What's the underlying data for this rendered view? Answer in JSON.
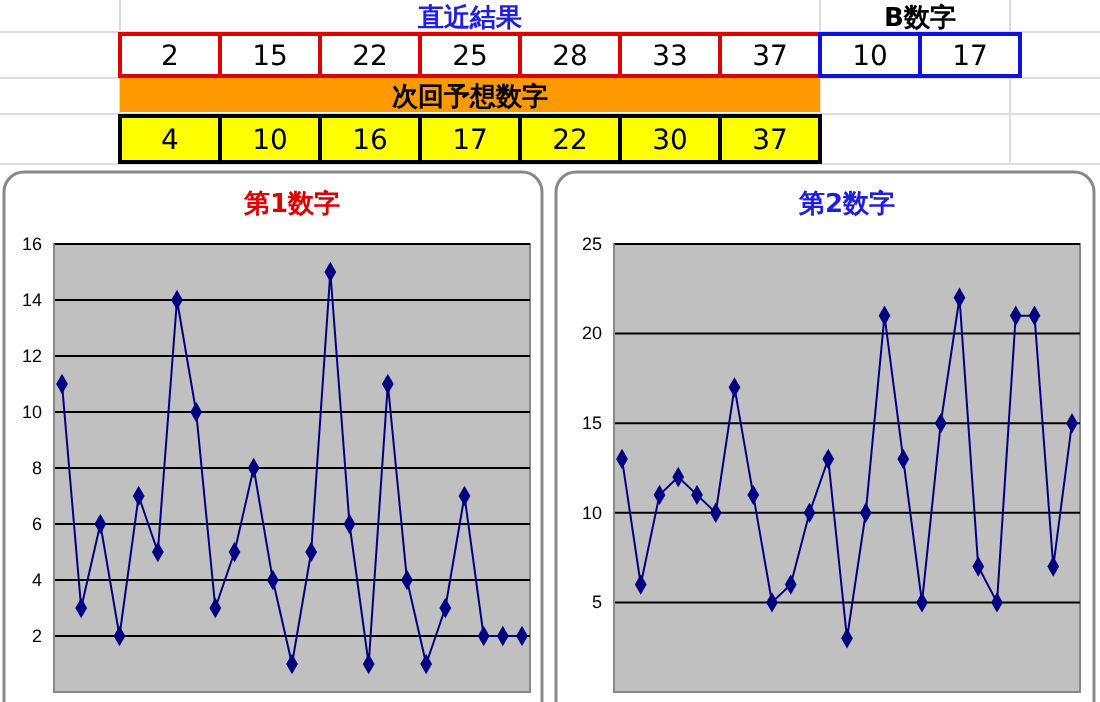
{
  "chart_data": [
    {
      "type": "other",
      "annotations": [
        "直近結果",
        "2",
        "15",
        "22",
        "25",
        "28",
        "33",
        "37",
        "B数字",
        "10",
        "17",
        "次回予想数字",
        "4",
        "10",
        "16",
        "17",
        "22",
        "30",
        "37"
      ]
    },
    {
      "type": "line",
      "title": "第1数字",
      "categories": [
        null,
        null,
        null,
        null,
        null,
        null,
        null,
        null,
        null,
        null,
        null,
        null,
        null,
        null,
        null,
        null,
        null,
        null,
        null,
        null,
        null,
        null,
        null,
        null,
        null
      ],
      "series": [
        {
          "color": "#000080",
          "values": [
            11,
            3,
            6,
            2,
            7,
            5,
            14,
            10,
            3,
            5,
            8,
            4,
            1,
            5,
            15,
            6,
            1,
            11,
            4,
            1,
            3,
            7,
            2,
            2,
            2
          ]
        }
      ],
      "ylim": [
        0,
        16
      ],
      "yticks": [
        2,
        4,
        6,
        8,
        10,
        12,
        14,
        16
      ],
      "grid": "y",
      "marker": "diamond",
      "tick_labels": "y"
    },
    {
      "type": "line",
      "title": "第2数字",
      "categories": [
        null,
        null,
        null,
        null,
        null,
        null,
        null,
        null,
        null,
        null,
        null,
        null,
        null,
        null,
        null,
        null,
        null,
        null,
        null,
        null,
        null,
        null,
        null,
        null,
        null
      ],
      "series": [
        {
          "color": "#000080",
          "values": [
            13,
            6,
            11,
            12,
            11,
            10,
            17,
            11,
            5,
            6,
            10,
            13,
            3,
            10,
            21,
            13,
            5,
            15,
            22,
            7,
            5,
            21,
            21,
            7,
            15
          ]
        }
      ],
      "ylim": [
        0,
        25
      ],
      "yticks": [
        5,
        10,
        15,
        20,
        25
      ],
      "grid": "y",
      "marker": "diamond",
      "tick_labels": "y"
    }
  ]
}
